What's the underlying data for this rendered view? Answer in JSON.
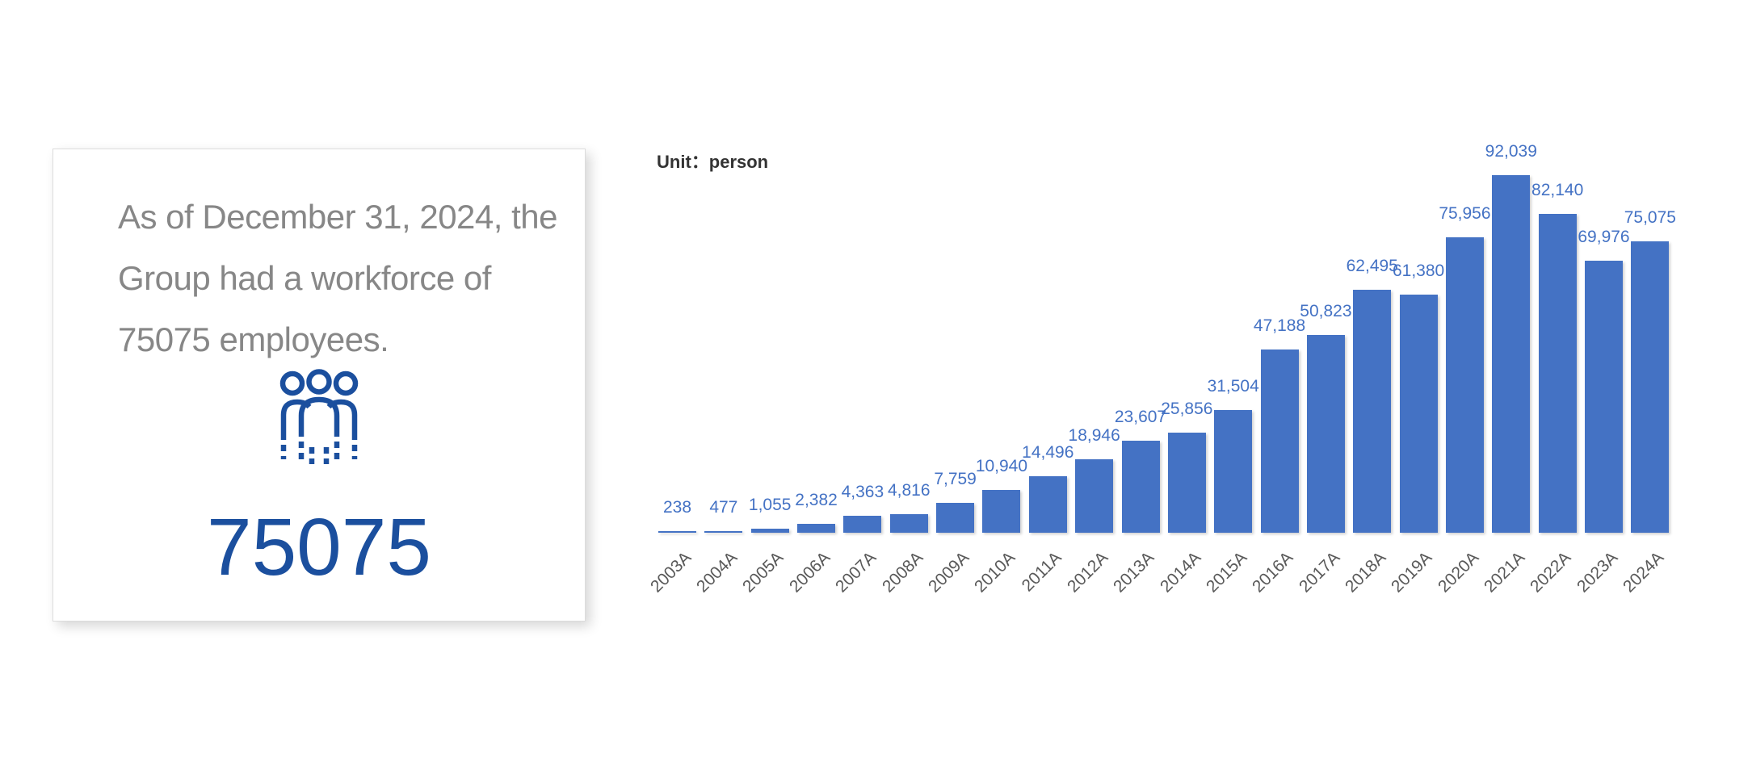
{
  "page": {
    "background": "#ffffff"
  },
  "card": {
    "text_lines": [
      "As of December 31, 2024, the",
      "Group had a workforce of",
      "75075 employees."
    ],
    "headcount": "75075",
    "icon": "people-group-icon",
    "text_color": "#878787",
    "accent_color": "#1b4f9e"
  },
  "chart": {
    "unit_label": "Unit：person"
  },
  "chart_data": {
    "type": "bar",
    "title": "",
    "unit": "person",
    "categories": [
      "2003A",
      "2004A",
      "2005A",
      "2006A",
      "2007A",
      "2008A",
      "2009A",
      "2010A",
      "2011A",
      "2012A",
      "2013A",
      "2014A",
      "2015A",
      "2016A",
      "2017A",
      "2018A",
      "2019A",
      "2020A",
      "2021A",
      "2022A",
      "2023A",
      "2024A"
    ],
    "values": [
      238,
      477,
      1055,
      2382,
      4363,
      4816,
      7759,
      10940,
      14496,
      18946,
      23607,
      25856,
      31504,
      47188,
      50823,
      62495,
      61380,
      75956,
      92039,
      82140,
      69976,
      75075
    ],
    "labels": [
      "238",
      "477",
      "1,055",
      "2,382",
      "4,363",
      "4,816",
      "7,759",
      "10,940",
      "14,496",
      "18,946",
      "23,607",
      "25,856",
      "31,504",
      "47,188",
      "50,823",
      "62,495",
      "61,380",
      "75,956",
      "92,039",
      "82,140",
      "69,976",
      "75,075"
    ],
    "ylim": [
      0,
      97000
    ],
    "grid": false,
    "legend": null,
    "value_labels": true,
    "xtick_rotation": -45,
    "bar_color": "#4472C4",
    "value_label_color": "#4472C4",
    "tick_label_color": "#595959"
  }
}
